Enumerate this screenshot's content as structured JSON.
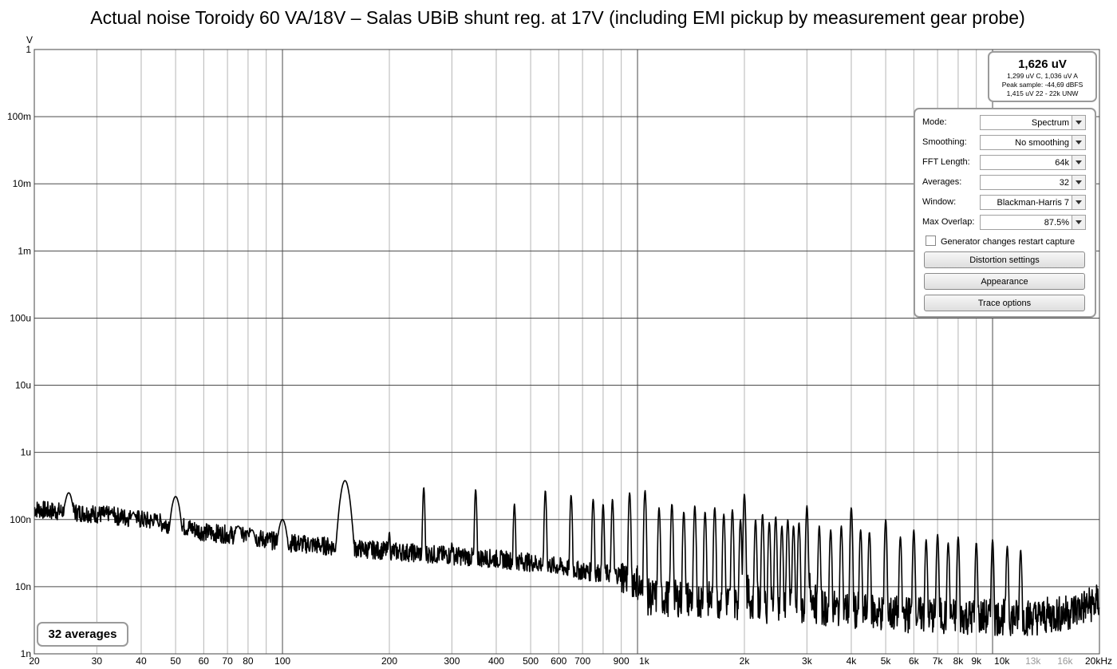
{
  "chart_data": {
    "type": "line",
    "title": "Actual noise Toroidy 60 VA/18V – Salas UBiB shunt reg. at 17V (including EMI pickup by measurement gear probe)",
    "ylabel": "V",
    "xlabel": "",
    "x_scale": "log",
    "y_scale": "log",
    "xlim": [
      20,
      20000
    ],
    "ylim": [
      1e-09,
      1
    ],
    "grid": true,
    "x_tick_labels": [
      {
        "v": 20,
        "t": "20"
      },
      {
        "v": 30,
        "t": "30"
      },
      {
        "v": 40,
        "t": "40"
      },
      {
        "v": 50,
        "t": "50"
      },
      {
        "v": 60,
        "t": "60"
      },
      {
        "v": 70,
        "t": "70"
      },
      {
        "v": 80,
        "t": "80"
      },
      {
        "v": 100,
        "t": "100"
      },
      {
        "v": 200,
        "t": "200"
      },
      {
        "v": 300,
        "t": "300"
      },
      {
        "v": 400,
        "t": "400"
      },
      {
        "v": 500,
        "t": "500"
      },
      {
        "v": 600,
        "t": "600"
      },
      {
        "v": 700,
        "t": "700"
      },
      {
        "v": 900,
        "t": "900"
      },
      {
        "v": 1000,
        "t": "1k"
      },
      {
        "v": 2000,
        "t": "2k"
      },
      {
        "v": 3000,
        "t": "3k"
      },
      {
        "v": 4000,
        "t": "4k"
      },
      {
        "v": 5000,
        "t": "5k"
      },
      {
        "v": 6000,
        "t": "6k"
      },
      {
        "v": 7000,
        "t": "7k"
      },
      {
        "v": 8000,
        "t": "8k"
      },
      {
        "v": 9000,
        "t": "9k"
      },
      {
        "v": 10000,
        "t": "10k"
      },
      {
        "v": 13000,
        "t": "13k",
        "faint": true
      },
      {
        "v": 16000,
        "t": "16k",
        "faint": true
      },
      {
        "v": 20000,
        "t": "20kHz"
      }
    ],
    "y_tick_labels": [
      {
        "v": 1,
        "t": "1"
      },
      {
        "v": 0.1,
        "t": "100m"
      },
      {
        "v": 0.01,
        "t": "10m"
      },
      {
        "v": 0.001,
        "t": "1m"
      },
      {
        "v": 0.0001,
        "t": "100u"
      },
      {
        "v": 1e-05,
        "t": "10u"
      },
      {
        "v": 1e-06,
        "t": "1u"
      },
      {
        "v": 1e-07,
        "t": "100n"
      },
      {
        "v": 1e-08,
        "t": "10n"
      },
      {
        "v": 1e-09,
        "t": "1n"
      }
    ],
    "series": [
      {
        "noise_floor": [
          [
            20,
            1.45e-07
          ],
          [
            22,
            1.35e-07
          ],
          [
            25,
            1.3e-07
          ],
          [
            28,
            1.25e-07
          ],
          [
            30,
            1.2e-07
          ],
          [
            35,
            1.1e-07
          ],
          [
            40,
            1e-07
          ],
          [
            45,
            9e-08
          ],
          [
            55,
            7.5e-08
          ],
          [
            60,
            6.5e-08
          ],
          [
            70,
            6e-08
          ],
          [
            80,
            5.5e-08
          ],
          [
            90,
            5e-08
          ],
          [
            100,
            4.6e-08
          ],
          [
            150,
            3.8e-08
          ],
          [
            200,
            3.4e-08
          ],
          [
            300,
            2.9e-08
          ],
          [
            400,
            2.6e-08
          ],
          [
            500,
            2.3e-08
          ],
          [
            600,
            2e-08
          ],
          [
            700,
            1.7e-08
          ],
          [
            900,
            1.5e-08
          ],
          [
            1000,
            1.2e-08
          ],
          [
            1040,
            7e-09
          ],
          [
            1500,
            6.5e-09
          ],
          [
            1950,
            6e-09
          ],
          [
            2000,
            1.1e-08
          ],
          [
            2100,
            5.5e-09
          ],
          [
            3000,
            4.8e-09
          ],
          [
            3050,
            1e-08
          ],
          [
            3200,
            5e-09
          ],
          [
            4000,
            4.5e-09
          ],
          [
            5000,
            4e-09
          ],
          [
            7000,
            3.7e-09
          ],
          [
            10000,
            3.5e-09
          ],
          [
            13000,
            3.5e-09
          ],
          [
            16000,
            4e-09
          ],
          [
            18000,
            5e-09
          ],
          [
            20000,
            6e-09
          ]
        ],
        "peaks": [
          [
            25,
            2.5e-07
          ],
          [
            33,
            1.25e-07
          ],
          [
            38,
            1.25e-07
          ],
          [
            44,
            1e-07
          ],
          [
            50,
            2.2e-07
          ],
          [
            75,
            8e-08
          ],
          [
            82,
            7e-08
          ],
          [
            100,
            1e-07
          ],
          [
            150,
            3.8e-07
          ],
          [
            200,
            6.5e-08
          ],
          [
            250,
            3e-07
          ],
          [
            300,
            4.5e-08
          ],
          [
            350,
            2.8e-07
          ],
          [
            450,
            1.7e-07
          ],
          [
            550,
            2.7e-07
          ],
          [
            650,
            2.3e-07
          ],
          [
            750,
            2e-07
          ],
          [
            800,
            1.7e-07
          ],
          [
            850,
            2e-07
          ],
          [
            950,
            2.5e-07
          ],
          [
            1050,
            2.7e-07
          ],
          [
            1150,
            1.5e-07
          ],
          [
            1250,
            1.7e-07
          ],
          [
            1350,
            1.3e-07
          ],
          [
            1450,
            1.6e-07
          ],
          [
            1550,
            1.3e-07
          ],
          [
            1650,
            1.5e-07
          ],
          [
            1750,
            1.2e-07
          ],
          [
            1850,
            1.4e-07
          ],
          [
            1950,
            1e-07
          ],
          [
            2000,
            2.4e-07
          ],
          [
            2150,
            1e-07
          ],
          [
            2250,
            1.2e-07
          ],
          [
            2350,
            9e-08
          ],
          [
            2450,
            1.1e-07
          ],
          [
            2550,
            8e-08
          ],
          [
            2650,
            1e-07
          ],
          [
            2750,
            8e-08
          ],
          [
            2850,
            9e-08
          ],
          [
            3000,
            1.6e-07
          ],
          [
            3250,
            8e-08
          ],
          [
            3500,
            7e-08
          ],
          [
            3750,
            8e-08
          ],
          [
            4000,
            1.5e-07
          ],
          [
            4250,
            7e-08
          ],
          [
            4500,
            6.5e-08
          ],
          [
            5000,
            1e-07
          ],
          [
            5500,
            5.5e-08
          ],
          [
            6000,
            7e-08
          ],
          [
            6500,
            5e-08
          ],
          [
            7000,
            6e-08
          ],
          [
            7500,
            4.5e-08
          ],
          [
            8000,
            5.5e-08
          ],
          [
            9000,
            4.5e-08
          ],
          [
            10000,
            5e-08
          ],
          [
            11000,
            4e-08
          ],
          [
            12000,
            3.5e-08
          ]
        ]
      }
    ]
  },
  "readout": {
    "main": "1,626 uV",
    "line1": "1,299 uV C, 1,036 uV A",
    "line2": "Peak sample: -44,69 dBFS",
    "line3": "1,415 uV 22 - 22k UNW"
  },
  "controls": {
    "mode_label": "Mode:",
    "mode_value": "Spectrum",
    "smoothing_label": "Smoothing:",
    "smoothing_value": "No  smoothing",
    "fft_label": "FFT Length:",
    "fft_value": "64k",
    "averages_label": "Averages:",
    "averages_value": "32",
    "window_label": "Window:",
    "window_value": "Blackman-Harris 7",
    "overlap_label": "Max Overlap:",
    "overlap_value": "87.5%",
    "generator_label": "Generator changes restart capture",
    "generator_checked": false,
    "distortion_button": "Distortion settings",
    "appearance_button": "Appearance",
    "trace_button": "Trace options"
  },
  "status": {
    "averages_text": "32 averages"
  },
  "colors": {
    "trace": "#000000",
    "grid": "#b4b4b4",
    "major_grid": "#4a4a4a"
  }
}
